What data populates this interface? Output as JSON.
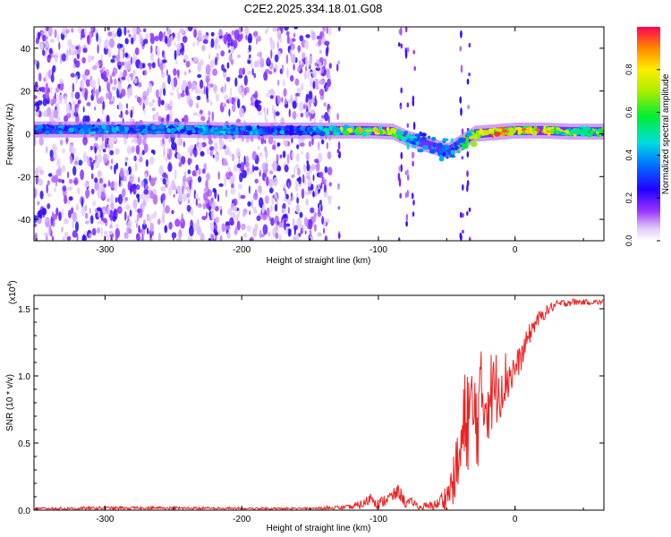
{
  "title": "C2E2.2025.334.18.01.G08",
  "chart_data": [
    {
      "type": "heatmap",
      "name": "spectrogram",
      "xlabel": "Height of straight line (km)",
      "ylabel": "Frequency (Hz)",
      "xlim": [
        -352,
        65
      ],
      "ylim": [
        -50,
        50
      ],
      "x_ticks": [
        -300,
        -200,
        -100,
        0
      ],
      "y_ticks": [
        -40,
        -20,
        0,
        20,
        40
      ],
      "x_tick_labels": [
        "-300",
        "-200",
        "-100",
        "0"
      ],
      "y_tick_labels": [
        "-40",
        "-20",
        "0",
        "20",
        "40"
      ],
      "noise_region_km": [
        -352,
        -135
      ],
      "ridge": {
        "description": "signal ridge frequency vs height",
        "x": [
          -352,
          -300,
          -250,
          -200,
          -150,
          -130,
          -110,
          -90,
          -80,
          -70,
          -60,
          -50,
          -40,
          -30,
          -20,
          -10,
          0,
          20,
          40,
          65
        ],
        "y": [
          2,
          2,
          2,
          1.5,
          1.5,
          1.5,
          1.5,
          1,
          -2,
          -4,
          -6,
          -8,
          -4,
          0,
          0.5,
          1,
          1.5,
          1.5,
          1,
          1
        ],
        "amplitude": [
          0.35,
          0.45,
          0.45,
          0.42,
          0.4,
          0.7,
          0.85,
          0.8,
          0.5,
          0.45,
          0.4,
          0.4,
          0.55,
          0.75,
          0.9,
          0.95,
          0.9,
          0.85,
          0.7,
          0.65
        ]
      },
      "colorbar": {
        "label": "Normalized spectral amplitude",
        "range": [
          0,
          1
        ],
        "ticks": [
          0,
          0.2,
          0.4,
          0.6,
          0.8
        ],
        "tick_labels": [
          "0.0",
          "0.2",
          "0.4",
          "0.6",
          "0.8"
        ]
      }
    },
    {
      "type": "line",
      "name": "snr",
      "xlabel": "Height of straight line (km)",
      "ylabel": "SNR (10 * v/v)",
      "y_exponent_label": "(x10",
      "y_exponent_power": "4",
      "y_exponent_close": ")",
      "xlim": [
        -352,
        65
      ],
      "ylim": [
        0,
        1.6
      ],
      "x_ticks": [
        -300,
        -200,
        -100,
        0
      ],
      "y_ticks": [
        0,
        0.5,
        1.0,
        1.5
      ],
      "x_tick_labels": [
        "-300",
        "-200",
        "-100",
        "0"
      ],
      "y_tick_labels": [
        "0.0",
        "0.5",
        "1.0",
        "1.5"
      ],
      "color": "#ee2222",
      "series": [
        {
          "name": "SNR",
          "x": [
            -352,
            -300,
            -250,
            -200,
            -150,
            -120,
            -110,
            -105,
            -100,
            -95,
            -90,
            -85,
            -80,
            -75,
            -70,
            -60,
            -50,
            -45,
            -40,
            -35,
            -30,
            -25,
            -20,
            -15,
            -10,
            -5,
            0,
            5,
            10,
            15,
            20,
            25,
            30,
            40,
            50,
            65
          ],
          "y": [
            0.01,
            0.015,
            0.015,
            0.01,
            0.01,
            0.02,
            0.05,
            0.1,
            0.04,
            0.08,
            0.1,
            0.14,
            0.05,
            0.06,
            0.02,
            0.03,
            0.1,
            0.22,
            0.4,
            0.75,
            0.65,
            0.8,
            0.85,
            0.9,
            0.95,
            1.0,
            1.05,
            1.15,
            1.3,
            1.4,
            1.45,
            1.5,
            1.53,
            1.55,
            1.55,
            1.55
          ],
          "noise_amplitude": [
            0.01,
            0.012,
            0.012,
            0.012,
            0.012,
            0.02,
            0.04,
            0.05,
            0.04,
            0.05,
            0.05,
            0.06,
            0.04,
            0.03,
            0.03,
            0.04,
            0.1,
            0.18,
            0.35,
            0.45,
            0.45,
            0.4,
            0.35,
            0.3,
            0.25,
            0.2,
            0.12,
            0.1,
            0.08,
            0.06,
            0.05,
            0.04,
            0.03,
            0.03,
            0.02,
            0.02
          ]
        }
      ]
    }
  ]
}
